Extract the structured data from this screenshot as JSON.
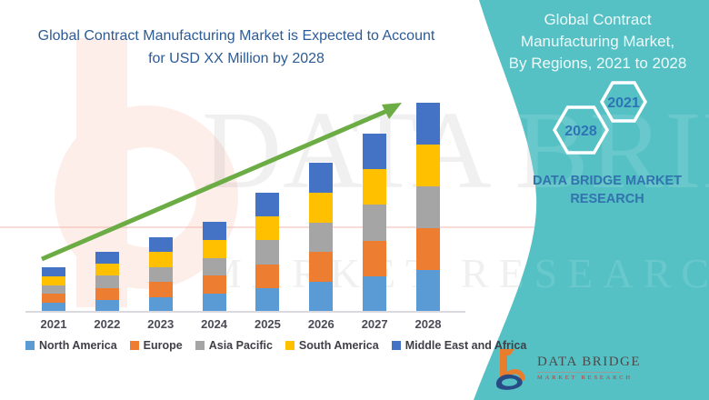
{
  "left_panel": {
    "title_line1": "Global Contract Manufacturing Market is Expected to Account",
    "title_line2": "for USD XX Million by 2028"
  },
  "right_panel": {
    "title_lines": [
      "Global Contract",
      "Manufacturing Market,",
      "By Regions, 2021 to 2028"
    ],
    "hex_back_year": "2021",
    "hex_front_year": "2028",
    "brand_line1": "DATA BRIDGE MARKET",
    "brand_line2": "RESEARCH"
  },
  "logo": {
    "name": "DATA BRIDGE",
    "subtitle": "MARKET RESEARCH"
  },
  "watermark": {
    "line1": "DATA BRIDGE",
    "line2": "MARKET RESEARCH"
  },
  "colors": {
    "teal_background": "#55c1c4",
    "title_blue": "#2d5b96",
    "hex_year_blue": "#2e74b5",
    "brand_blue": "#3273ae",
    "trend_arrow_green": "#6cac45",
    "logo_orange": "#e87e2d",
    "logo_navy": "#284b85",
    "logo_sub_red": "#be3a34"
  },
  "chart_data": {
    "type": "bar",
    "stacked": true,
    "title": "Global Contract Manufacturing Market is Expected to Account for USD XX Million by 2028",
    "categories": [
      "2021",
      "2022",
      "2023",
      "2024",
      "2025",
      "2026",
      "2027",
      "2028"
    ],
    "series": [
      {
        "name": "North America",
        "color": "#5b9bd5",
        "values": [
          9.8,
          13.2,
          16.4,
          19.8,
          26.2,
          32.8,
          39.2,
          46.0
        ]
      },
      {
        "name": "Europe",
        "color": "#ed7d31",
        "values": [
          9.8,
          13.2,
          16.4,
          19.8,
          26.2,
          32.8,
          39.2,
          46.0
        ]
      },
      {
        "name": "Asia Pacific",
        "color": "#a5a5a5",
        "values": [
          9.8,
          13.2,
          16.4,
          19.8,
          26.2,
          32.8,
          39.2,
          46.0
        ]
      },
      {
        "name": "South America",
        "color": "#ffc000",
        "values": [
          9.8,
          13.2,
          16.4,
          19.8,
          26.2,
          32.8,
          39.2,
          46.0
        ]
      },
      {
        "name": "Middle East and Africa",
        "color": "#4472c4",
        "values": [
          9.8,
          13.2,
          16.4,
          19.8,
          26.2,
          32.8,
          39.2,
          46.0
        ]
      }
    ],
    "estimated_totals_relative": [
      49,
      66,
      82,
      99,
      131,
      164,
      196,
      230
    ],
    "units": "relative height units (actual values shown as USD XX Million)",
    "value_axis_visible": false,
    "grid": false,
    "legend_position": "bottom",
    "trend_arrow": true
  }
}
